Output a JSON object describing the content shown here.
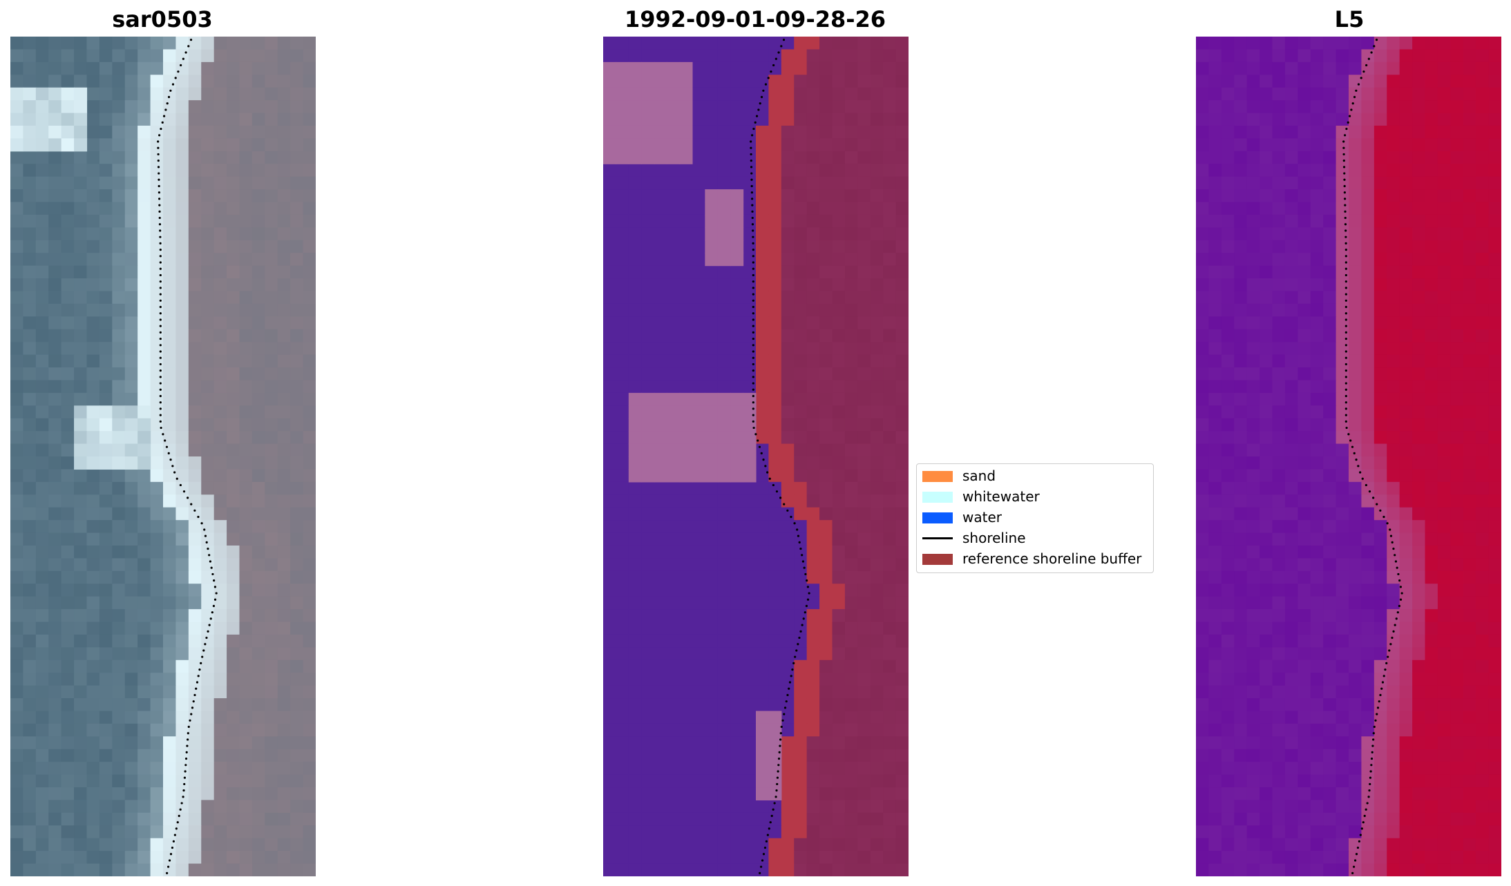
{
  "panels": [
    {
      "title": "sar0503"
    },
    {
      "title": "1992-09-01-09-28-26"
    },
    {
      "title": "L5"
    }
  ],
  "legend": {
    "items": [
      {
        "label": "sand",
        "color": "#ff8c40",
        "kind": "patch"
      },
      {
        "label": "whitewater",
        "color": "#c8ffff",
        "kind": "patch"
      },
      {
        "label": "water",
        "color": "#0a5cff",
        "kind": "patch"
      },
      {
        "label": "shoreline",
        "color": "#000000",
        "kind": "line"
      },
      {
        "label": "reference shoreline buffer",
        "color": "#a33a3a",
        "kind": "patch"
      }
    ]
  },
  "colors": {
    "rgb_water": "#4d6b7d",
    "rgb_land": "#8a7e88",
    "rgb_surf": "#e0f4fa",
    "class_water": "#55239a",
    "class_land": "#8a2c5a",
    "class_patch": "#a8699e",
    "class_buffer": "#b63848",
    "index_low": "#6a109e",
    "index_high": "#c00638",
    "shoreline_dots": "#000000"
  }
}
